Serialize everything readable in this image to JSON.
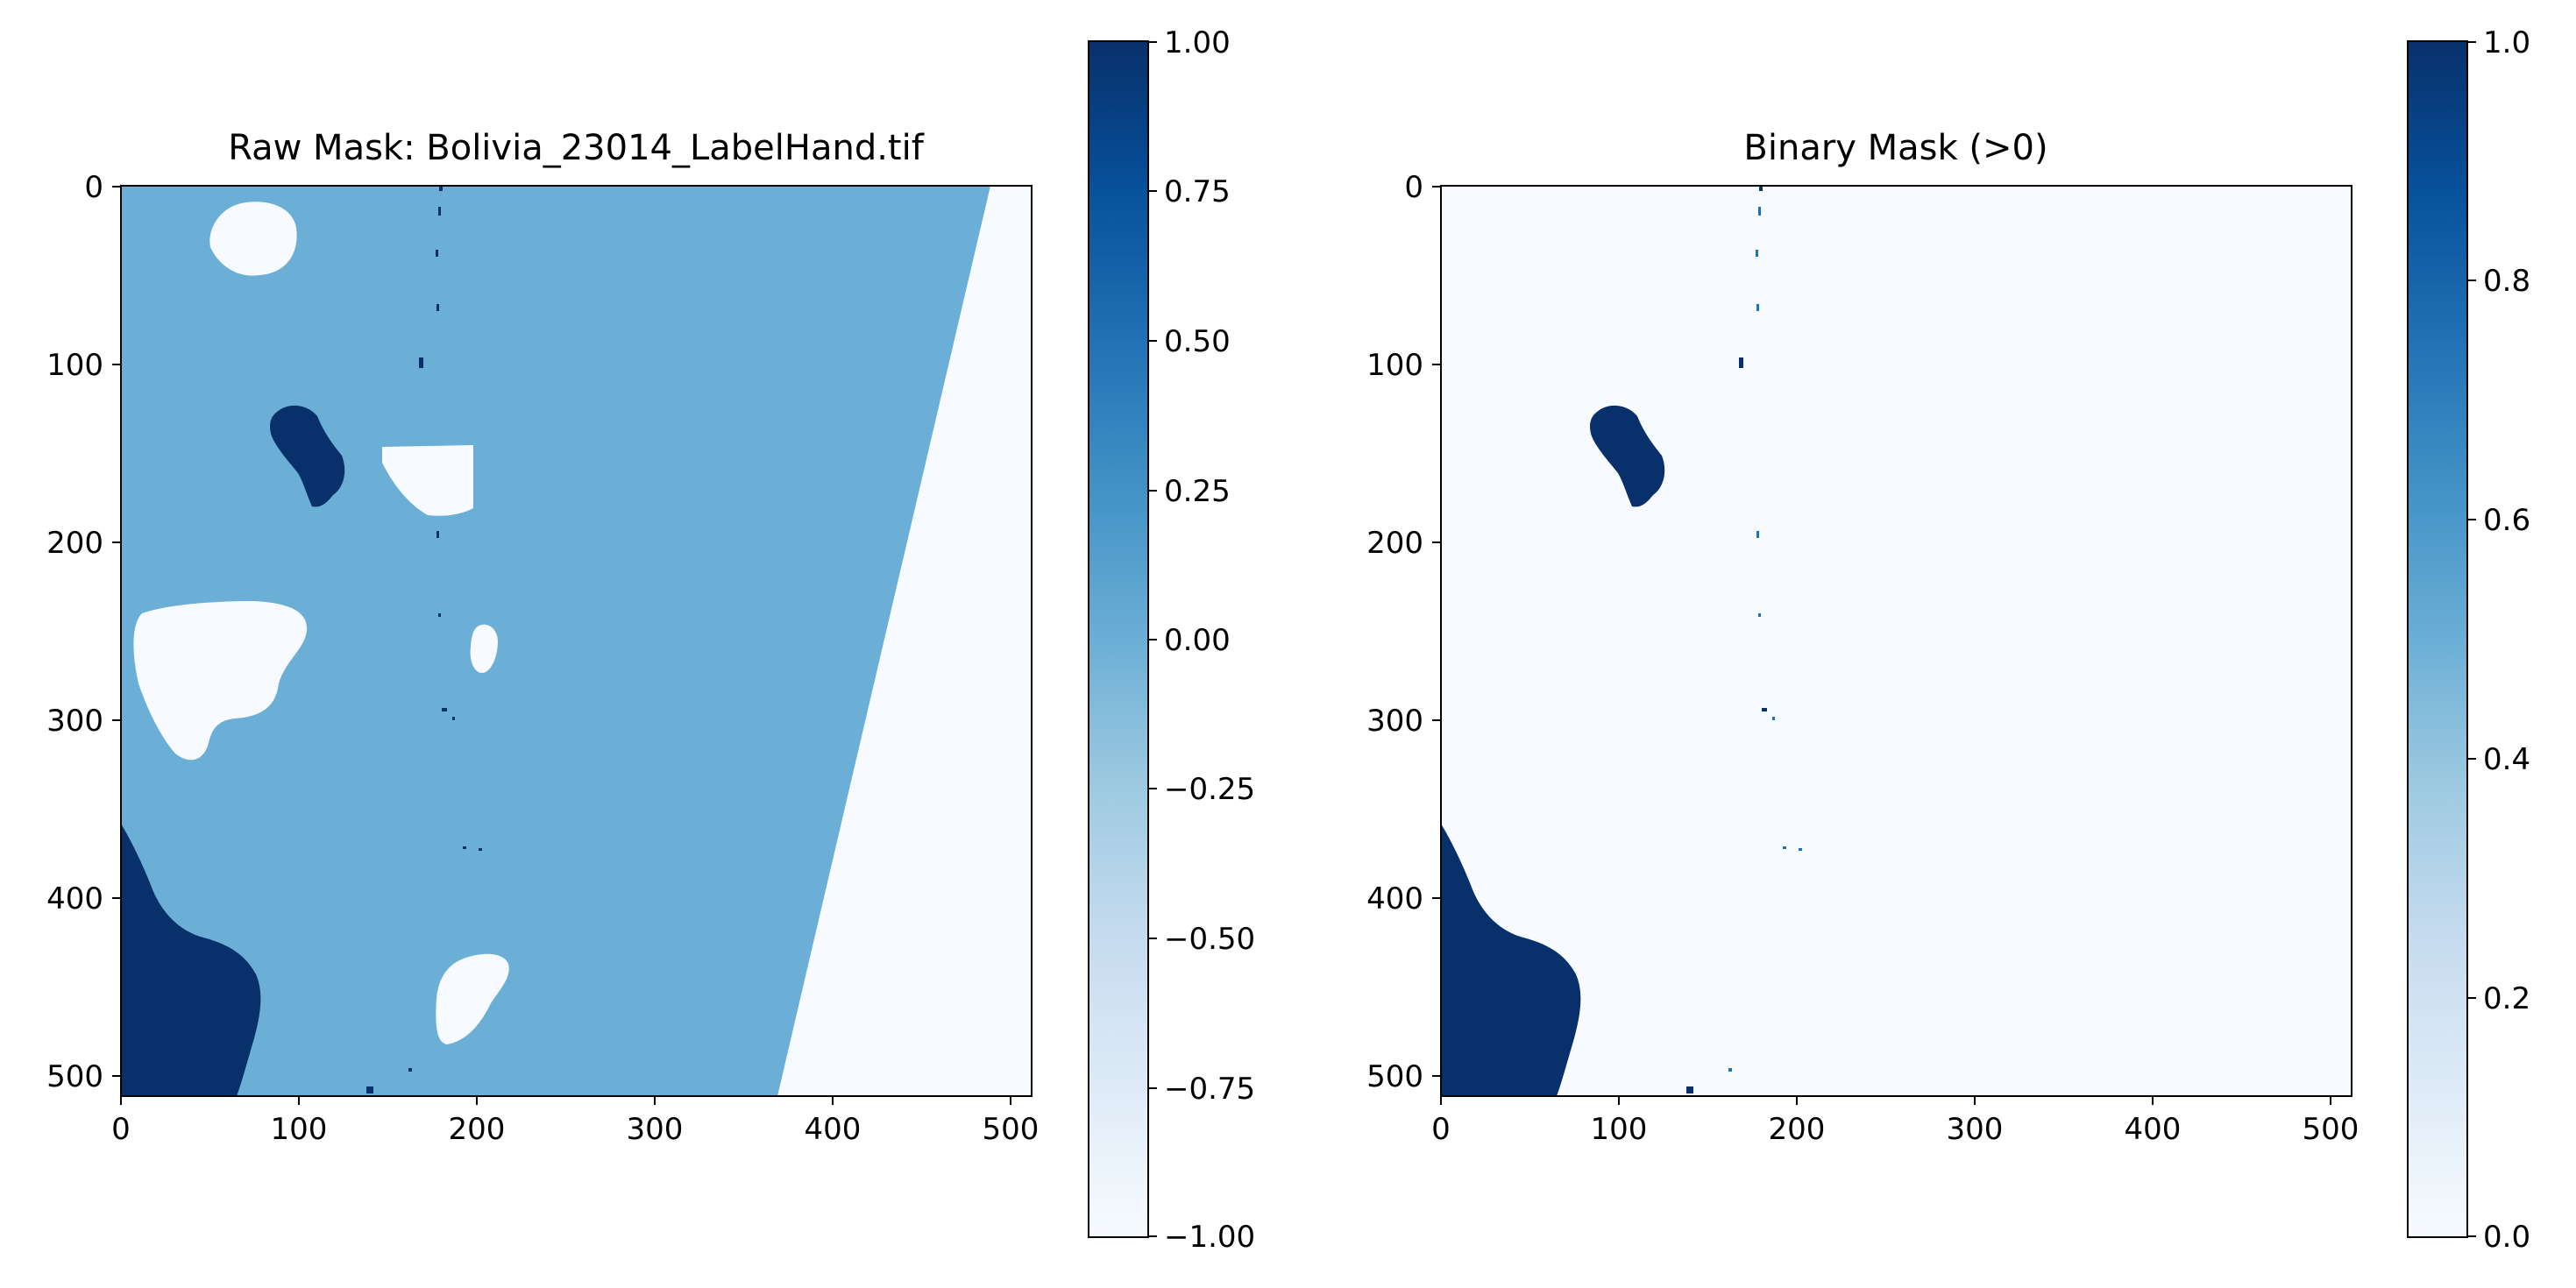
{
  "chart_data": [
    {
      "type": "heatmap",
      "title": "Raw Mask: Bolivia_23014_LabelHand.tif",
      "xlabel": "",
      "ylabel": "",
      "xlim": [
        0,
        512
      ],
      "ylim": [
        512,
        0
      ],
      "x_ticks": [
        "0",
        "100",
        "200",
        "300",
        "400",
        "500"
      ],
      "y_ticks": [
        "0",
        "100",
        "200",
        "300",
        "400",
        "500"
      ],
      "colormap": "Blues",
      "colors": {
        "min": "#f7fbff",
        "mid": "#6baed6",
        "max": "#08306b"
      },
      "value_levels": [
        -1,
        0,
        1
      ],
      "colorbar": {
        "range": [
          -1.0,
          1.0
        ],
        "ticks": [
          "1.00",
          "0.75",
          "0.50",
          "0.25",
          "0.00",
          "−0.25",
          "−0.50",
          "−0.75",
          "−1.00"
        ]
      },
      "grid": false
    },
    {
      "type": "heatmap",
      "title": "Binary Mask (>0)",
      "xlabel": "",
      "ylabel": "",
      "xlim": [
        0,
        512
      ],
      "ylim": [
        512,
        0
      ],
      "x_ticks": [
        "0",
        "100",
        "200",
        "300",
        "400",
        "500"
      ],
      "y_ticks": [
        "0",
        "100",
        "200",
        "300",
        "400",
        "500"
      ],
      "colormap": "Blues",
      "colors": {
        "min": "#f7fbff",
        "max": "#08306b"
      },
      "value_levels": [
        0,
        1
      ],
      "colorbar": {
        "range": [
          0.0,
          1.0
        ],
        "ticks": [
          "1.0",
          "0.8",
          "0.6",
          "0.4",
          "0.2",
          "0.0"
        ]
      },
      "grid": false
    }
  ]
}
